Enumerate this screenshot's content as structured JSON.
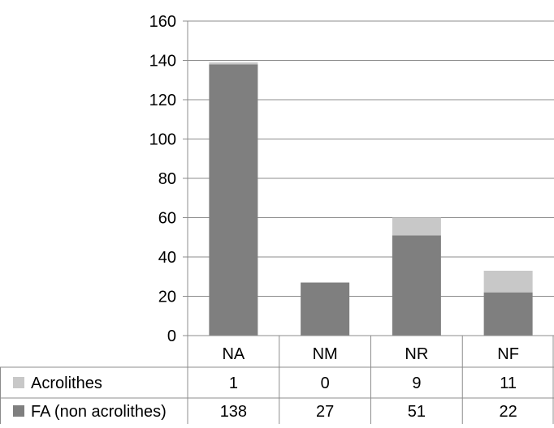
{
  "chart_data": {
    "type": "bar",
    "stacked": true,
    "categories": [
      "NA",
      "NM",
      "NR",
      "NF"
    ],
    "series": [
      {
        "name": "FA (non acrolithes)",
        "values": [
          138,
          27,
          51,
          22
        ],
        "color": "#7f7f7f"
      },
      {
        "name": "Acrolithes",
        "values": [
          1,
          0,
          9,
          11
        ],
        "color": "#c8c8c8"
      }
    ],
    "ylim": [
      0,
      160
    ],
    "yticks": [
      0,
      20,
      40,
      60,
      80,
      100,
      120,
      140,
      160
    ],
    "grid": true,
    "legend": "data-table-below"
  }
}
